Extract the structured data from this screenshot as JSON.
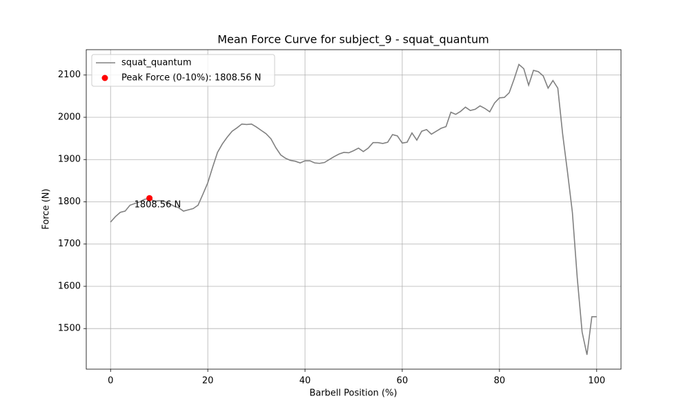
{
  "chart_data": {
    "type": "line",
    "title": "Mean Force Curve for subject_9 - squat_quantum",
    "x_label": "Barbell Position (%)",
    "y_label": "Force (N)",
    "x": [
      0,
      1,
      2,
      3,
      4,
      5,
      6,
      7,
      8,
      9,
      10,
      11,
      12,
      13,
      14,
      15,
      16,
      17,
      18,
      19,
      20,
      21,
      22,
      23,
      24,
      25,
      26,
      27,
      28,
      29,
      30,
      31,
      32,
      33,
      34,
      35,
      36,
      37,
      38,
      39,
      40,
      41,
      42,
      43,
      44,
      45,
      46,
      47,
      48,
      49,
      50,
      51,
      52,
      53,
      54,
      55,
      56,
      57,
      58,
      59,
      60,
      61,
      62,
      63,
      64,
      65,
      66,
      67,
      68,
      69,
      70,
      71,
      72,
      73,
      74,
      75,
      76,
      77,
      78,
      79,
      80,
      81,
      82,
      83,
      84,
      85,
      86,
      87,
      88,
      89,
      90,
      91,
      92,
      93,
      94,
      95,
      96,
      97,
      98,
      99,
      100
    ],
    "series": [
      {
        "name": "squat_quantum",
        "color": "#808080",
        "values": [
          1752,
          1765,
          1775,
          1778,
          1792,
          1796,
          1800,
          1806,
          1808,
          1801,
          1803,
          1801,
          1797,
          1790,
          1786,
          1778,
          1781,
          1784,
          1792,
          1818,
          1845,
          1882,
          1917,
          1937,
          1953,
          1967,
          1975,
          1984,
          1983,
          1984,
          1977,
          1969,
          1961,
          1949,
          1928,
          1911,
          1903,
          1898,
          1896,
          1892,
          1897,
          1897,
          1892,
          1891,
          1893,
          1900,
          1907,
          1913,
          1917,
          1916,
          1921,
          1927,
          1919,
          1927,
          1940,
          1940,
          1938,
          1941,
          1959,
          1956,
          1939,
          1941,
          1963,
          1946,
          1967,
          1971,
          1960,
          1967,
          1974,
          1978,
          2012,
          2007,
          2014,
          2024,
          2016,
          2019,
          2027,
          2021,
          2013,
          2034,
          2046,
          2047,
          2058,
          2090,
          2125,
          2115,
          2076,
          2111,
          2108,
          2098,
          2069,
          2087,
          2069,
          1960,
          1870,
          1775,
          1620,
          1492,
          1438,
          1528,
          1528
        ]
      }
    ],
    "peak": {
      "name": "Peak Force (0-10%): 1808.56 N",
      "x": 8,
      "y": 1808.56,
      "label": "1808.56 N",
      "color": "#ff0000"
    },
    "xlim": [
      -5,
      105
    ],
    "xticks": [
      0,
      20,
      40,
      60,
      80,
      100
    ],
    "ylim": [
      1404,
      2160
    ],
    "yticks": [
      1500,
      1600,
      1700,
      1800,
      1900,
      2000,
      2100
    ],
    "grid": true,
    "legend": "upper left"
  }
}
